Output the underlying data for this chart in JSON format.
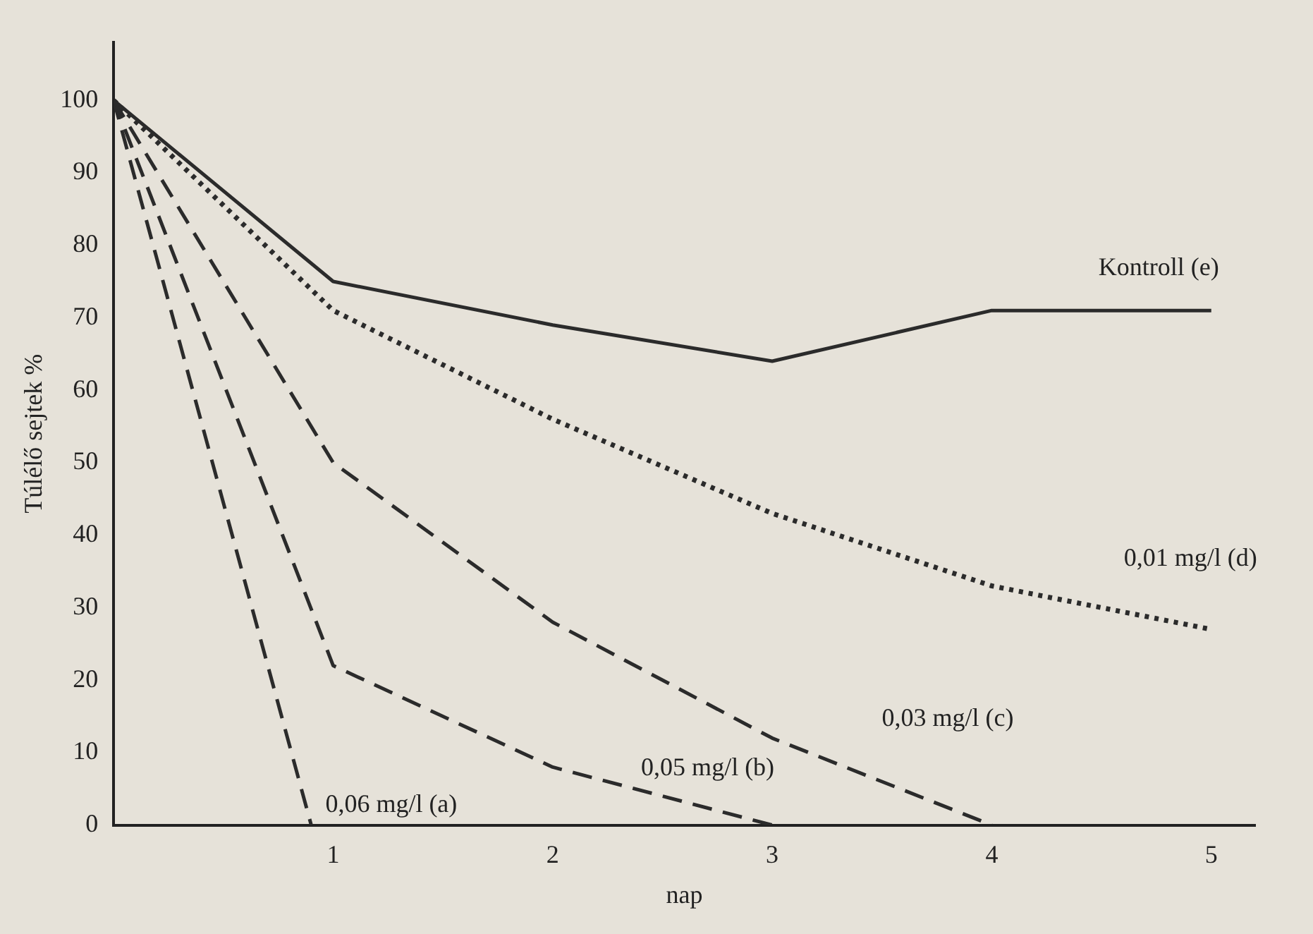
{
  "chart_data": {
    "type": "line",
    "xlabel": "nap",
    "ylabel": "Túlélő sejtek %",
    "xlim": [
      0,
      5.2
    ],
    "xticks": [
      1,
      2,
      3,
      4,
      5
    ],
    "ylim": [
      0,
      108
    ],
    "yticks": [
      0,
      10,
      20,
      30,
      40,
      50,
      60,
      70,
      80,
      90,
      100
    ],
    "grid": false,
    "legend": false,
    "marker": "none",
    "series": [
      {
        "name": "Kontroll (e)",
        "x": [
          0,
          1,
          2,
          3,
          4,
          5
        ],
        "values": [
          100,
          75,
          69,
          64,
          71,
          71
        ],
        "color": "#2b2b2b",
        "line_style": "solid"
      },
      {
        "name": "0,01 mg/l (d)",
        "x": [
          0,
          1,
          2,
          3,
          4,
          5
        ],
        "values": [
          100,
          71,
          56,
          43,
          33,
          27
        ],
        "color": "#2b2b2b",
        "line_style": "dotted"
      },
      {
        "name": "0,03 mg/l (c)",
        "x": [
          0,
          1,
          2,
          3,
          4
        ],
        "values": [
          100,
          50,
          28,
          12,
          0
        ],
        "color": "#2b2b2b",
        "line_style": "dashed"
      },
      {
        "name": "0,05 mg/l (b)",
        "x": [
          0,
          1,
          2,
          3
        ],
        "values": [
          100,
          22,
          8,
          0
        ],
        "color": "#2b2b2b",
        "line_style": "dashed"
      },
      {
        "name": "0,06 mg/l (a)",
        "x": [
          0,
          0.9
        ],
        "values": [
          100,
          0
        ],
        "color": "#2b2b2b",
        "line_style": "dashed"
      }
    ]
  }
}
